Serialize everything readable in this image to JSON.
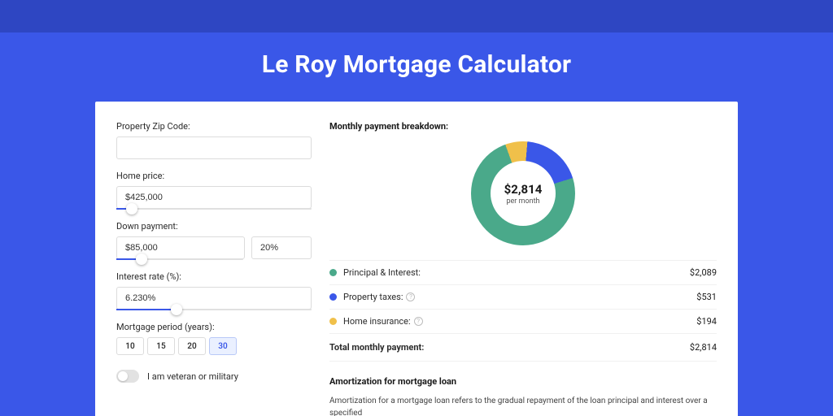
{
  "page": {
    "title": "Le Roy Mortgage Calculator",
    "bg_color": "#3a57e8",
    "inset_shadow_color": "#2e46c2",
    "card_bg": "#ffffff"
  },
  "form": {
    "zip": {
      "label": "Property Zip Code:",
      "value": ""
    },
    "home_price": {
      "label": "Home price:",
      "value": "$425,000",
      "slider_pct": 8
    },
    "down_payment": {
      "label": "Down payment:",
      "value": "$85,000",
      "pct": "20%",
      "slider_pct": 20
    },
    "interest": {
      "label": "Interest rate (%):",
      "value": "6.230%",
      "slider_pct": 31
    },
    "period": {
      "label": "Mortgage period (years):",
      "options": [
        "10",
        "15",
        "20",
        "30"
      ],
      "selected": "30"
    },
    "veteran": {
      "label": "I am veteran or military",
      "checked": false
    }
  },
  "breakdown": {
    "heading": "Monthly payment breakdown:",
    "chart": {
      "type": "donut",
      "center_value": "$2,814",
      "center_sub": "per month",
      "slices": [
        {
          "key": "principal_interest",
          "value": 2089,
          "pct": 74.24,
          "color": "#4aa98a"
        },
        {
          "key": "property_taxes",
          "value": 531,
          "pct": 18.87,
          "color": "#3a57e8"
        },
        {
          "key": "home_insurance",
          "value": 194,
          "pct": 6.89,
          "color": "#f0c04a"
        }
      ],
      "thickness": 24,
      "diameter": 128,
      "background_color": "#ffffff"
    },
    "rows": [
      {
        "label": "Principal & Interest:",
        "value": "$2,089",
        "color": "#4aa98a",
        "info": false
      },
      {
        "label": "Property taxes:",
        "value": "$531",
        "color": "#3a57e8",
        "info": true
      },
      {
        "label": "Home insurance:",
        "value": "$194",
        "color": "#f0c04a",
        "info": true
      }
    ],
    "total": {
      "label": "Total monthly payment:",
      "value": "$2,814"
    }
  },
  "amortization": {
    "heading": "Amortization for mortgage loan",
    "body": "Amortization for a mortgage loan refers to the gradual repayment of the loan principal and interest over a specified"
  },
  "colors": {
    "accent": "#3a57e8",
    "green": "#4aa98a",
    "yellow": "#f0c04a",
    "border": "#dcdcdc",
    "divider": "#f0f0f0",
    "text": "#1a1a1a"
  }
}
